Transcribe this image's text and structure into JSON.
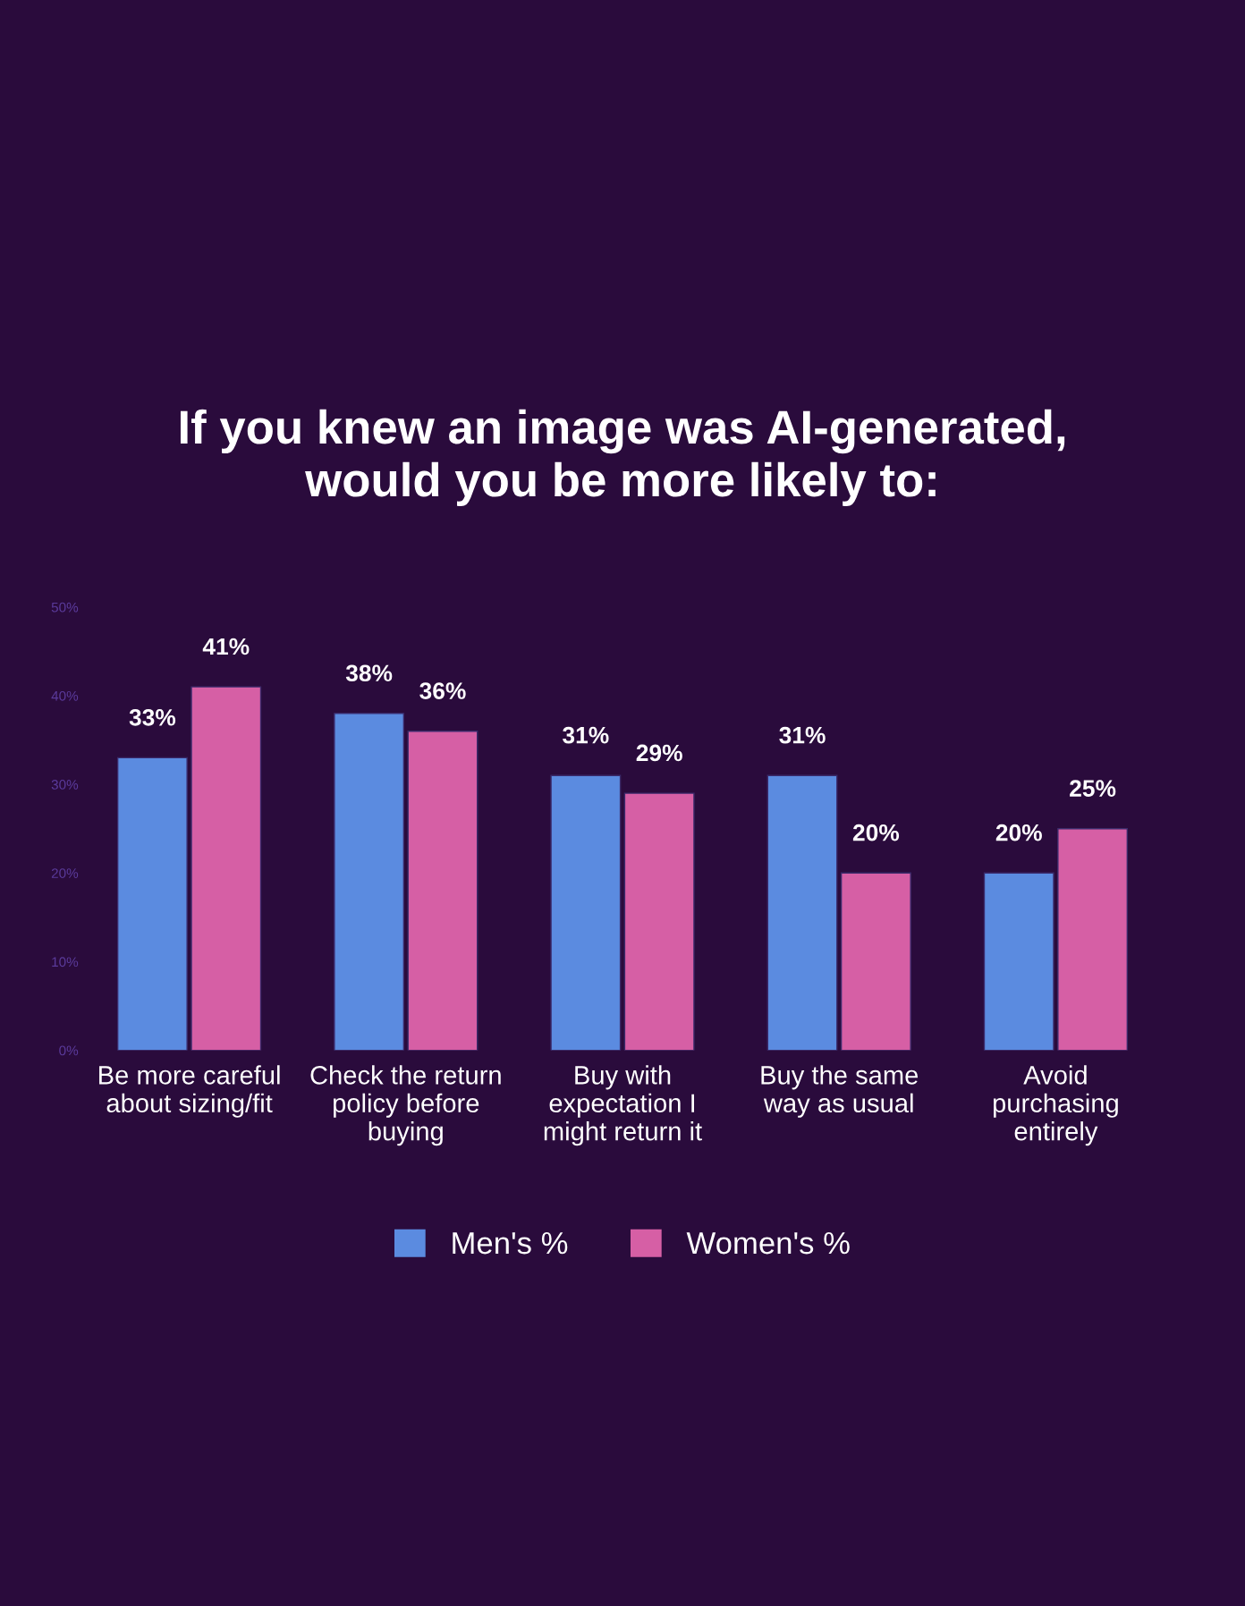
{
  "chart_data": {
    "type": "bar",
    "title": "If you knew an image was AI-generated,\nwould you be more likely to:",
    "categories": [
      "Be more careful\nabout sizing/fit",
      "Check the return\npolicy before\nbuying",
      "Buy with\nexpectation I\nmight return it",
      "Buy the same\nway as usual",
      "Avoid\npurchasing\nentirely"
    ],
    "series": [
      {
        "name": "Men's %",
        "color": "#5b8be0",
        "values": [
          33,
          38,
          31,
          31,
          20
        ],
        "value_labels": [
          "33%",
          "38%",
          "31%",
          "31%",
          "20%"
        ]
      },
      {
        "name": "Women's %",
        "color": "#d65fa5",
        "values": [
          41,
          36,
          29,
          20,
          25
        ],
        "value_labels": [
          "41%",
          "36%",
          "29%",
          "20%",
          "25%"
        ]
      }
    ],
    "ylim": [
      0,
      50
    ],
    "yticks": [
      {
        "value": 0,
        "label": "0%"
      },
      {
        "value": 10,
        "label": "10%"
      },
      {
        "value": 20,
        "label": "20%"
      },
      {
        "value": 30,
        "label": "30%"
      },
      {
        "value": 40,
        "label": "40%"
      },
      {
        "value": 50,
        "label": "50%"
      }
    ],
    "grid": false,
    "legend": "bottom"
  }
}
